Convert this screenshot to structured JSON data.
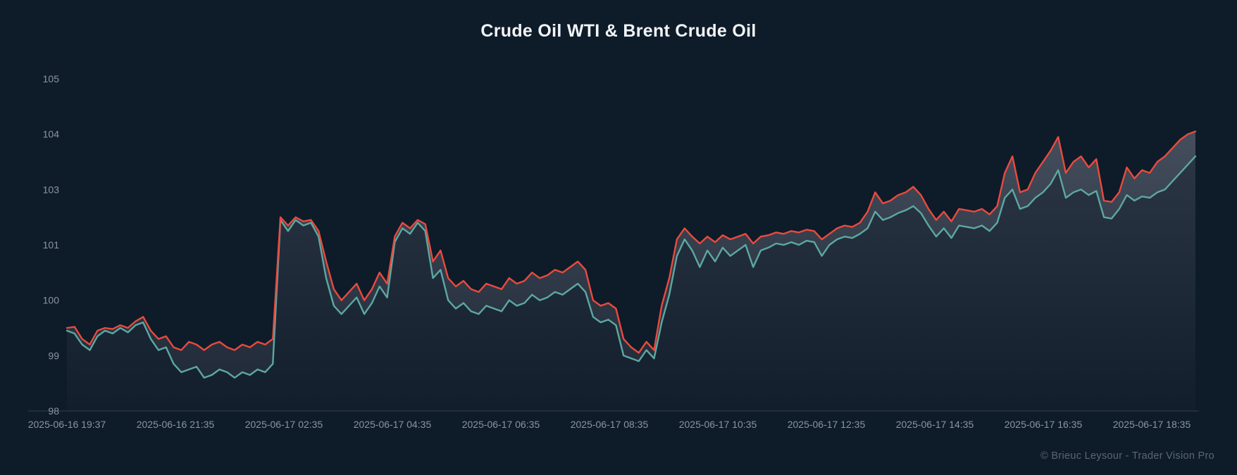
{
  "footer": {
    "credit": "© Brieuc Leysour - Trader Vision Pro"
  },
  "colors": {
    "background": "#0e1b29",
    "brent_line": "#ea4a3d",
    "wti_line": "#5ca8a2",
    "axis_text": "#8b95a1",
    "credit_text": "#5b6673"
  },
  "chart_data": {
    "type": "line",
    "title": "Crude Oil WTI & Brent Crude Oil",
    "xlabel": "",
    "ylabel": "",
    "ylim": [
      98,
      105
    ],
    "grid": false,
    "legend": "none",
    "x_tick_labels": [
      "2025-06-16 19:37",
      "2025-06-16 21:35",
      "2025-06-17 02:35",
      "2025-06-17 04:35",
      "2025-06-17 06:35",
      "2025-06-17 08:35",
      "2025-06-17 10:35",
      "2025-06-17 12:35",
      "2025-06-17 14:35",
      "2025-06-17 16:35",
      "2025-06-17 18:35"
    ],
    "y_tick_labels": [
      "98",
      "99",
      "100",
      "101",
      "103",
      "104",
      "105"
    ],
    "y_tick_values": [
      98,
      99,
      100,
      101,
      103,
      104,
      105
    ],
    "series": [
      {
        "name": "Brent Crude Oil",
        "color": "#ea4a3d",
        "values": [
          99.5,
          99.52,
          99.3,
          99.2,
          99.45,
          99.5,
          99.48,
          99.55,
          99.5,
          99.62,
          99.7,
          99.45,
          99.3,
          99.35,
          99.15,
          99.1,
          99.25,
          99.2,
          99.1,
          99.2,
          99.25,
          99.15,
          99.1,
          99.2,
          99.15,
          99.25,
          99.2,
          99.3,
          102.0,
          101.7,
          102.0,
          101.85,
          101.9,
          101.5,
          100.7,
          100.2,
          100.0,
          100.15,
          100.3,
          100.0,
          100.2,
          100.5,
          100.3,
          101.3,
          101.8,
          101.6,
          101.9,
          101.75,
          100.7,
          100.9,
          100.4,
          100.25,
          100.35,
          100.2,
          100.15,
          100.3,
          100.25,
          100.2,
          100.4,
          100.3,
          100.35,
          100.5,
          100.4,
          100.45,
          100.55,
          100.5,
          100.6,
          100.7,
          100.55,
          100.0,
          99.9,
          99.95,
          99.85,
          99.3,
          99.15,
          99.05,
          99.25,
          99.1,
          99.9,
          100.4,
          101.2,
          101.6,
          101.3,
          101.05,
          101.3,
          101.1,
          101.35,
          101.2,
          101.3,
          101.4,
          101.05,
          101.3,
          101.35,
          101.45,
          101.4,
          101.5,
          101.45,
          101.55,
          101.5,
          101.2,
          101.4,
          101.6,
          101.7,
          101.65,
          101.8,
          102.2,
          102.9,
          102.5,
          102.6,
          102.8,
          102.9,
          103.05,
          102.8,
          102.3,
          101.9,
          102.2,
          101.85,
          102.3,
          102.25,
          102.2,
          102.3,
          102.1,
          102.4,
          103.3,
          103.6,
          102.9,
          103.0,
          103.3,
          103.5,
          103.7,
          103.95,
          103.3,
          103.5,
          103.6,
          103.4,
          103.55,
          102.6,
          102.55,
          102.9,
          103.4,
          103.2,
          103.35,
          103.3,
          103.5,
          103.6,
          103.75,
          103.9,
          104.0,
          104.05
        ]
      },
      {
        "name": "Crude Oil WTI",
        "color": "#5ca8a2",
        "values": [
          99.45,
          99.4,
          99.2,
          99.1,
          99.35,
          99.45,
          99.4,
          99.5,
          99.42,
          99.55,
          99.6,
          99.3,
          99.1,
          99.15,
          98.85,
          98.7,
          98.75,
          98.8,
          98.6,
          98.65,
          98.75,
          98.7,
          98.6,
          98.7,
          98.65,
          98.75,
          98.7,
          98.85,
          101.9,
          101.5,
          101.9,
          101.7,
          101.8,
          101.3,
          100.4,
          99.9,
          99.75,
          99.9,
          100.05,
          99.75,
          99.95,
          100.25,
          100.05,
          101.1,
          101.6,
          101.4,
          101.8,
          101.5,
          100.4,
          100.55,
          100.0,
          99.85,
          99.95,
          99.8,
          99.75,
          99.9,
          99.85,
          99.8,
          100.0,
          99.9,
          99.95,
          100.1,
          100.0,
          100.05,
          100.15,
          100.1,
          100.2,
          100.3,
          100.15,
          99.7,
          99.6,
          99.65,
          99.55,
          99.0,
          98.95,
          98.9,
          99.1,
          98.95,
          99.6,
          100.1,
          100.8,
          101.2,
          100.9,
          100.6,
          100.9,
          100.7,
          100.95,
          100.8,
          100.9,
          101.0,
          100.6,
          100.9,
          100.95,
          101.05,
          101.0,
          101.1,
          101.0,
          101.15,
          101.1,
          100.8,
          101.0,
          101.2,
          101.3,
          101.25,
          101.4,
          101.6,
          102.2,
          101.9,
          102.0,
          102.15,
          102.25,
          102.4,
          102.15,
          101.7,
          101.3,
          101.6,
          101.25,
          101.7,
          101.65,
          101.6,
          101.7,
          101.5,
          101.8,
          102.7,
          103.0,
          102.3,
          102.4,
          102.7,
          102.9,
          103.1,
          103.35,
          102.7,
          102.9,
          103.0,
          102.8,
          102.95,
          102.0,
          101.95,
          102.3,
          102.8,
          102.6,
          102.75,
          102.7,
          102.9,
          103.0,
          103.15,
          103.3,
          103.45,
          103.6
        ]
      }
    ]
  }
}
